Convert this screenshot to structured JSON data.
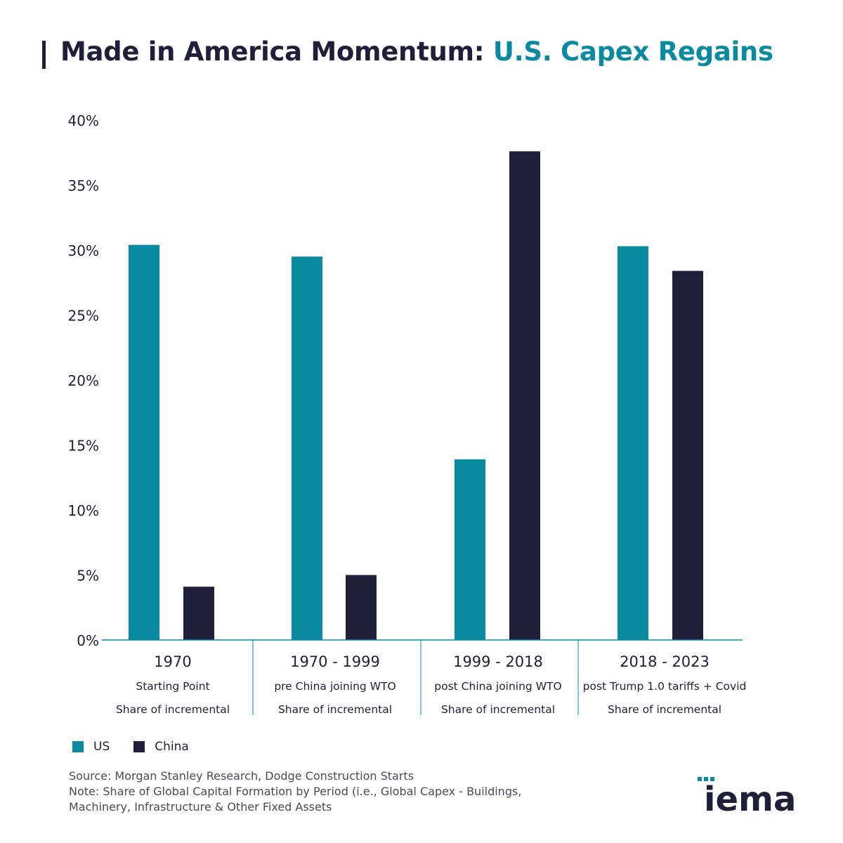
{
  "title": {
    "main": "Made in America Momentum:",
    "accent": "U.S. Capex Regains"
  },
  "colors": {
    "us": "#0a8aa0",
    "china": "#1f1f3a",
    "axis": "#0a8aa0",
    "text": "#1f1f3a"
  },
  "legend": {
    "us": "US",
    "china": "China"
  },
  "notes": {
    "source": "Source: Morgan Stanley Research, Dodge Construction Starts",
    "note_line1": "Note: Share of Global Capital Formation by Period (i.e., Global Capex - Buildings,",
    "note_line2": "Machinery, Infrastructure & Other Fixed Assets"
  },
  "logo": {
    "text": "iema"
  },
  "chart_data": {
    "type": "bar",
    "categories": [
      "1970",
      "1970 - 1999",
      "1999 - 2018",
      "2018 - 2023"
    ],
    "category_sublabels": [
      [
        "Starting Point",
        "Share of incremental"
      ],
      [
        "pre China joining WTO",
        "Share of incremental"
      ],
      [
        "post China joining WTO",
        "Share of incremental"
      ],
      [
        "post Trump 1.0 tariffs + Covid",
        "Share of incremental"
      ]
    ],
    "series": [
      {
        "name": "US",
        "values": [
          30.4,
          29.5,
          13.9,
          30.3
        ]
      },
      {
        "name": "China",
        "values": [
          4.1,
          5.0,
          37.6,
          28.4
        ]
      }
    ],
    "ylim": [
      0,
      40
    ],
    "yticks": [
      "0%",
      "5%",
      "10%",
      "15%",
      "20%",
      "25%",
      "30%",
      "35%",
      "40%"
    ],
    "grid": false,
    "legend_position": "bottom-left"
  }
}
